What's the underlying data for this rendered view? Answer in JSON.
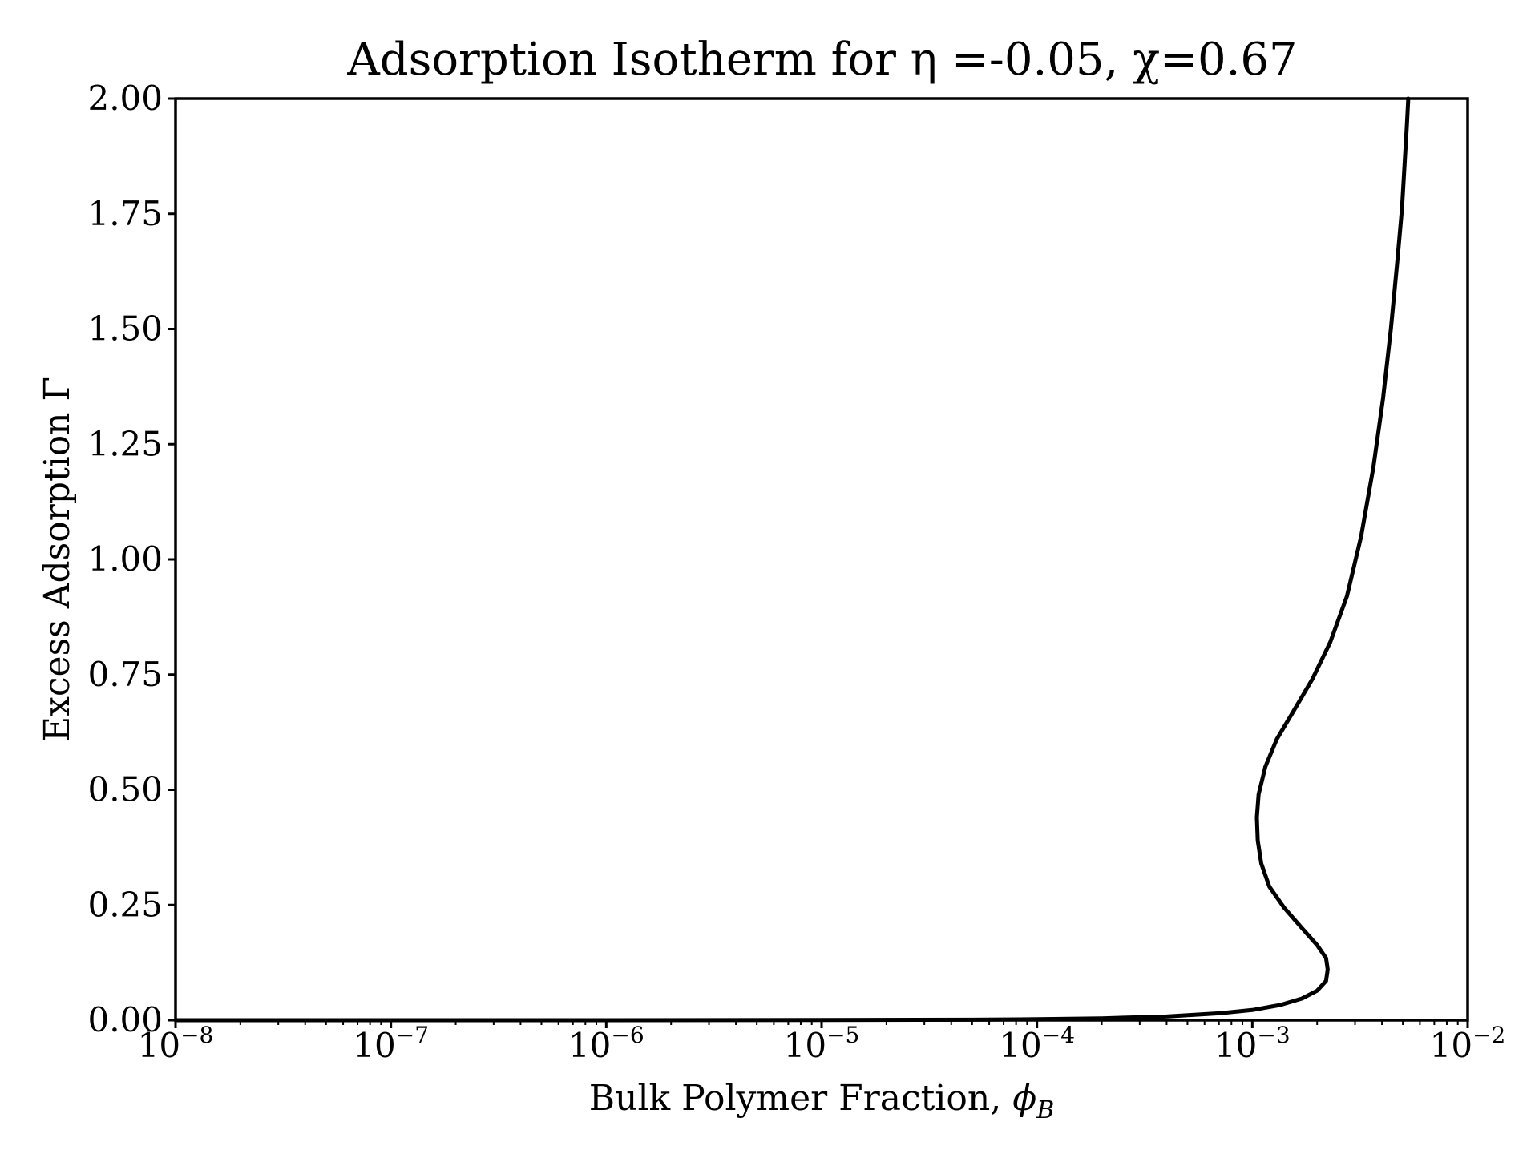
{
  "chart_data": {
    "type": "line",
    "title": "Adsorption Isotherm for η =-0.05, χ=0.67",
    "xlabel_main": "Bulk Polymer Fraction, ",
    "xlabel_symbol": "ϕ",
    "xlabel_sub": "B",
    "ylabel": "Excess Adsorption Γ",
    "x_scale": "log",
    "xlim": [
      1e-08,
      0.01
    ],
    "ylim": [
      0,
      2
    ],
    "grid": false,
    "x_ticks": [
      {
        "base": "10",
        "exp": "−8",
        "value": 1e-08
      },
      {
        "base": "10",
        "exp": "−7",
        "value": 1e-07
      },
      {
        "base": "10",
        "exp": "−6",
        "value": 1e-06
      },
      {
        "base": "10",
        "exp": "−5",
        "value": 1e-05
      },
      {
        "base": "10",
        "exp": "−4",
        "value": 0.0001
      },
      {
        "base": "10",
        "exp": "−3",
        "value": 0.001
      },
      {
        "base": "10",
        "exp": "−2",
        "value": 0.01
      }
    ],
    "y_ticks": [
      {
        "label": "0.00",
        "value": 0.0
      },
      {
        "label": "0.25",
        "value": 0.25
      },
      {
        "label": "0.50",
        "value": 0.5
      },
      {
        "label": "0.75",
        "value": 0.75
      },
      {
        "label": "1.00",
        "value": 1.0
      },
      {
        "label": "1.25",
        "value": 1.25
      },
      {
        "label": "1.50",
        "value": 1.5
      },
      {
        "label": "1.75",
        "value": 1.75
      },
      {
        "label": "2.00",
        "value": 2.0
      }
    ],
    "series": [
      {
        "color": "#000000",
        "x": [
          1e-08,
          1e-06,
          1e-05,
          5e-05,
          0.0001,
          0.0002,
          0.0004,
          0.0007,
          0.001,
          0.00135,
          0.0017,
          0.002,
          0.0022,
          0.00224,
          0.0022,
          0.002,
          0.0017,
          0.0014,
          0.0012,
          0.0011,
          0.00106,
          0.00105,
          0.00107,
          0.00115,
          0.0013,
          0.00155,
          0.0019,
          0.0023,
          0.00275,
          0.0032,
          0.00365,
          0.00405,
          0.0044,
          0.0047,
          0.00495,
          0.0051,
          0.00522,
          0.0053
        ],
        "y": [
          0.0,
          0.0,
          0.0003,
          0.001,
          0.002,
          0.004,
          0.008,
          0.015,
          0.022,
          0.033,
          0.047,
          0.064,
          0.085,
          0.11,
          0.135,
          0.163,
          0.2,
          0.245,
          0.29,
          0.34,
          0.39,
          0.44,
          0.49,
          0.55,
          0.61,
          0.67,
          0.74,
          0.82,
          0.92,
          1.05,
          1.2,
          1.35,
          1.5,
          1.64,
          1.76,
          1.86,
          1.94,
          2.0
        ]
      }
    ]
  }
}
